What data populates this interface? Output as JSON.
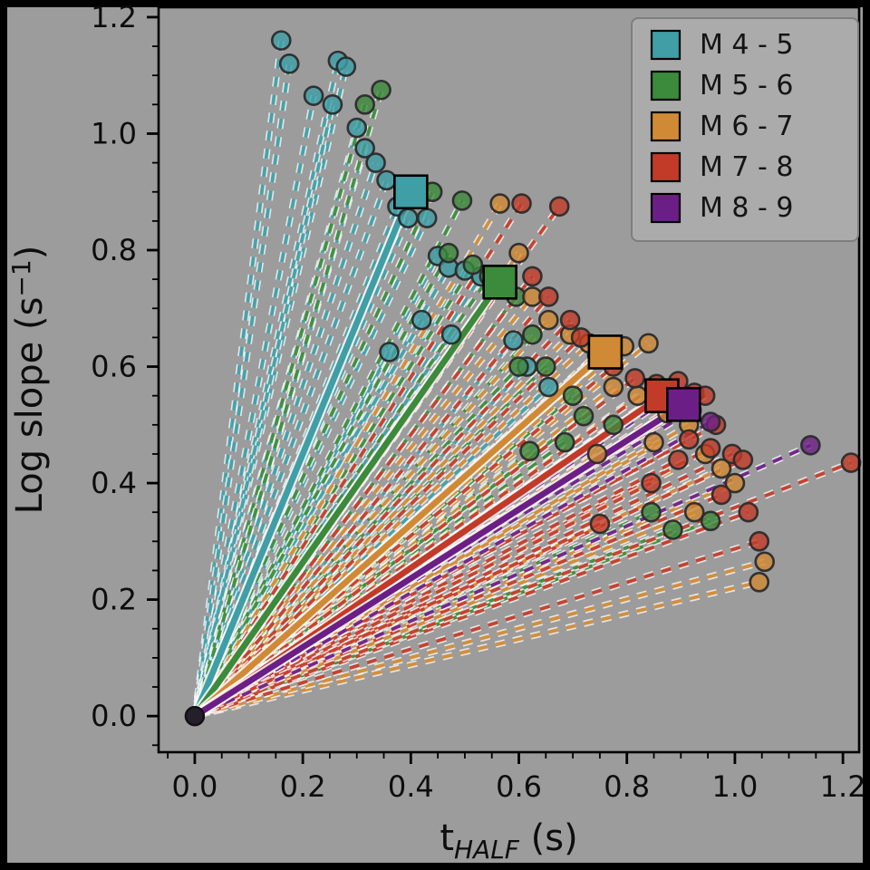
{
  "figure": {
    "background": "#9c9c9c",
    "frame_color": "#000000",
    "spine_color": "#000000",
    "tick_label_color": "#0d0d0d",
    "axis_label_color": "#0d0d0d"
  },
  "chart_data": {
    "type": "scatter",
    "title": "",
    "xlabel_parts": {
      "base": "t",
      "sub": "HALF",
      "suffix": " (s)"
    },
    "ylabel_parts": {
      "base": "Log slope (s",
      "sup": "−1",
      "suffix": ")"
    },
    "xlim": [
      -0.067,
      1.23
    ],
    "ylim": [
      -0.062,
      1.217
    ],
    "xticks": [
      0.0,
      0.2,
      0.4,
      0.6,
      0.8,
      1.0,
      1.2
    ],
    "yticks": [
      0.0,
      0.2,
      0.4,
      0.6,
      0.8,
      1.0,
      1.2
    ],
    "minor_tick_step": 0.05,
    "grid": false,
    "legend": {
      "position": "upper right",
      "background": "#ababab",
      "border": "#7e7e7e",
      "text_color": "#141414"
    },
    "origin_marker": {
      "x": 0.0,
      "y": 0.0,
      "color": "#241f2a"
    },
    "line_style": {
      "dash": "11 9",
      "connector_note": "each point connected to origin (0,0) by dashed line with white outline; series mean connected by thick solid line with white outline"
    },
    "series": [
      {
        "name": "M 4 - 5",
        "color": "#3f9ea6",
        "mean": [
          0.4,
          0.9
        ],
        "points": [
          [
            0.16,
            1.16
          ],
          [
            0.175,
            1.12
          ],
          [
            0.22,
            1.065
          ],
          [
            0.265,
            1.125
          ],
          [
            0.28,
            1.115
          ],
          [
            0.255,
            1.05
          ],
          [
            0.3,
            1.01
          ],
          [
            0.315,
            0.975
          ],
          [
            0.335,
            0.95
          ],
          [
            0.355,
            0.92
          ],
          [
            0.375,
            0.875
          ],
          [
            0.395,
            0.855
          ],
          [
            0.43,
            0.855
          ],
          [
            0.45,
            0.79
          ],
          [
            0.47,
            0.77
          ],
          [
            0.5,
            0.765
          ],
          [
            0.53,
            0.755
          ],
          [
            0.42,
            0.68
          ],
          [
            0.475,
            0.655
          ],
          [
            0.36,
            0.625
          ],
          [
            0.59,
            0.645
          ],
          [
            0.615,
            0.6
          ],
          [
            0.655,
            0.565
          ]
        ]
      },
      {
        "name": "M 5 - 6",
        "color": "#3c8a3c",
        "mean": [
          0.565,
          0.745
        ],
        "points": [
          [
            0.315,
            1.05
          ],
          [
            0.345,
            1.075
          ],
          [
            0.44,
            0.9
          ],
          [
            0.495,
            0.885
          ],
          [
            0.47,
            0.795
          ],
          [
            0.515,
            0.775
          ],
          [
            0.545,
            0.755
          ],
          [
            0.565,
            0.735
          ],
          [
            0.595,
            0.72
          ],
          [
            0.625,
            0.655
          ],
          [
            0.6,
            0.6
          ],
          [
            0.65,
            0.6
          ],
          [
            0.7,
            0.55
          ],
          [
            0.72,
            0.515
          ],
          [
            0.775,
            0.5
          ],
          [
            0.685,
            0.47
          ],
          [
            0.845,
            0.35
          ],
          [
            0.885,
            0.32
          ],
          [
            0.62,
            0.455
          ],
          [
            0.955,
            0.335
          ]
        ]
      },
      {
        "name": "M 6 - 7",
        "color": "#d08a35",
        "mean": [
          0.76,
          0.625
        ],
        "points": [
          [
            0.565,
            0.88
          ],
          [
            0.6,
            0.795
          ],
          [
            0.625,
            0.72
          ],
          [
            0.655,
            0.68
          ],
          [
            0.695,
            0.655
          ],
          [
            0.73,
            0.64
          ],
          [
            0.755,
            0.63
          ],
          [
            0.795,
            0.635
          ],
          [
            0.84,
            0.64
          ],
          [
            0.775,
            0.565
          ],
          [
            0.82,
            0.55
          ],
          [
            0.875,
            0.52
          ],
          [
            0.915,
            0.5
          ],
          [
            0.945,
            0.45
          ],
          [
            0.975,
            0.425
          ],
          [
            1.0,
            0.4
          ],
          [
            0.925,
            0.35
          ],
          [
            1.045,
            0.23
          ],
          [
            0.85,
            0.47
          ],
          [
            0.745,
            0.45
          ],
          [
            1.055,
            0.265
          ]
        ]
      },
      {
        "name": "M 7 - 8",
        "color": "#c23b28",
        "mean": [
          0.865,
          0.55
        ],
        "points": [
          [
            0.605,
            0.88
          ],
          [
            0.675,
            0.875
          ],
          [
            0.625,
            0.755
          ],
          [
            0.655,
            0.72
          ],
          [
            0.695,
            0.68
          ],
          [
            0.715,
            0.65
          ],
          [
            0.745,
            0.62
          ],
          [
            0.775,
            0.6
          ],
          [
            0.815,
            0.58
          ],
          [
            0.855,
            0.57
          ],
          [
            0.875,
            0.555
          ],
          [
            0.895,
            0.575
          ],
          [
            0.925,
            0.555
          ],
          [
            0.945,
            0.55
          ],
          [
            0.965,
            0.5
          ],
          [
            0.915,
            0.475
          ],
          [
            0.955,
            0.46
          ],
          [
            0.995,
            0.45
          ],
          [
            1.015,
            0.44
          ],
          [
            0.895,
            0.44
          ],
          [
            0.845,
            0.4
          ],
          [
            0.975,
            0.38
          ],
          [
            1.025,
            0.35
          ],
          [
            0.75,
            0.33
          ],
          [
            1.045,
            0.3
          ],
          [
            1.215,
            0.435
          ]
        ]
      },
      {
        "name": "M 8 - 9",
        "color": "#6b1f86",
        "mean": [
          0.905,
          0.535
        ],
        "points": [
          [
            0.875,
            0.545
          ],
          [
            0.92,
            0.525
          ],
          [
            0.955,
            0.505
          ],
          [
            1.14,
            0.465
          ]
        ]
      }
    ]
  }
}
